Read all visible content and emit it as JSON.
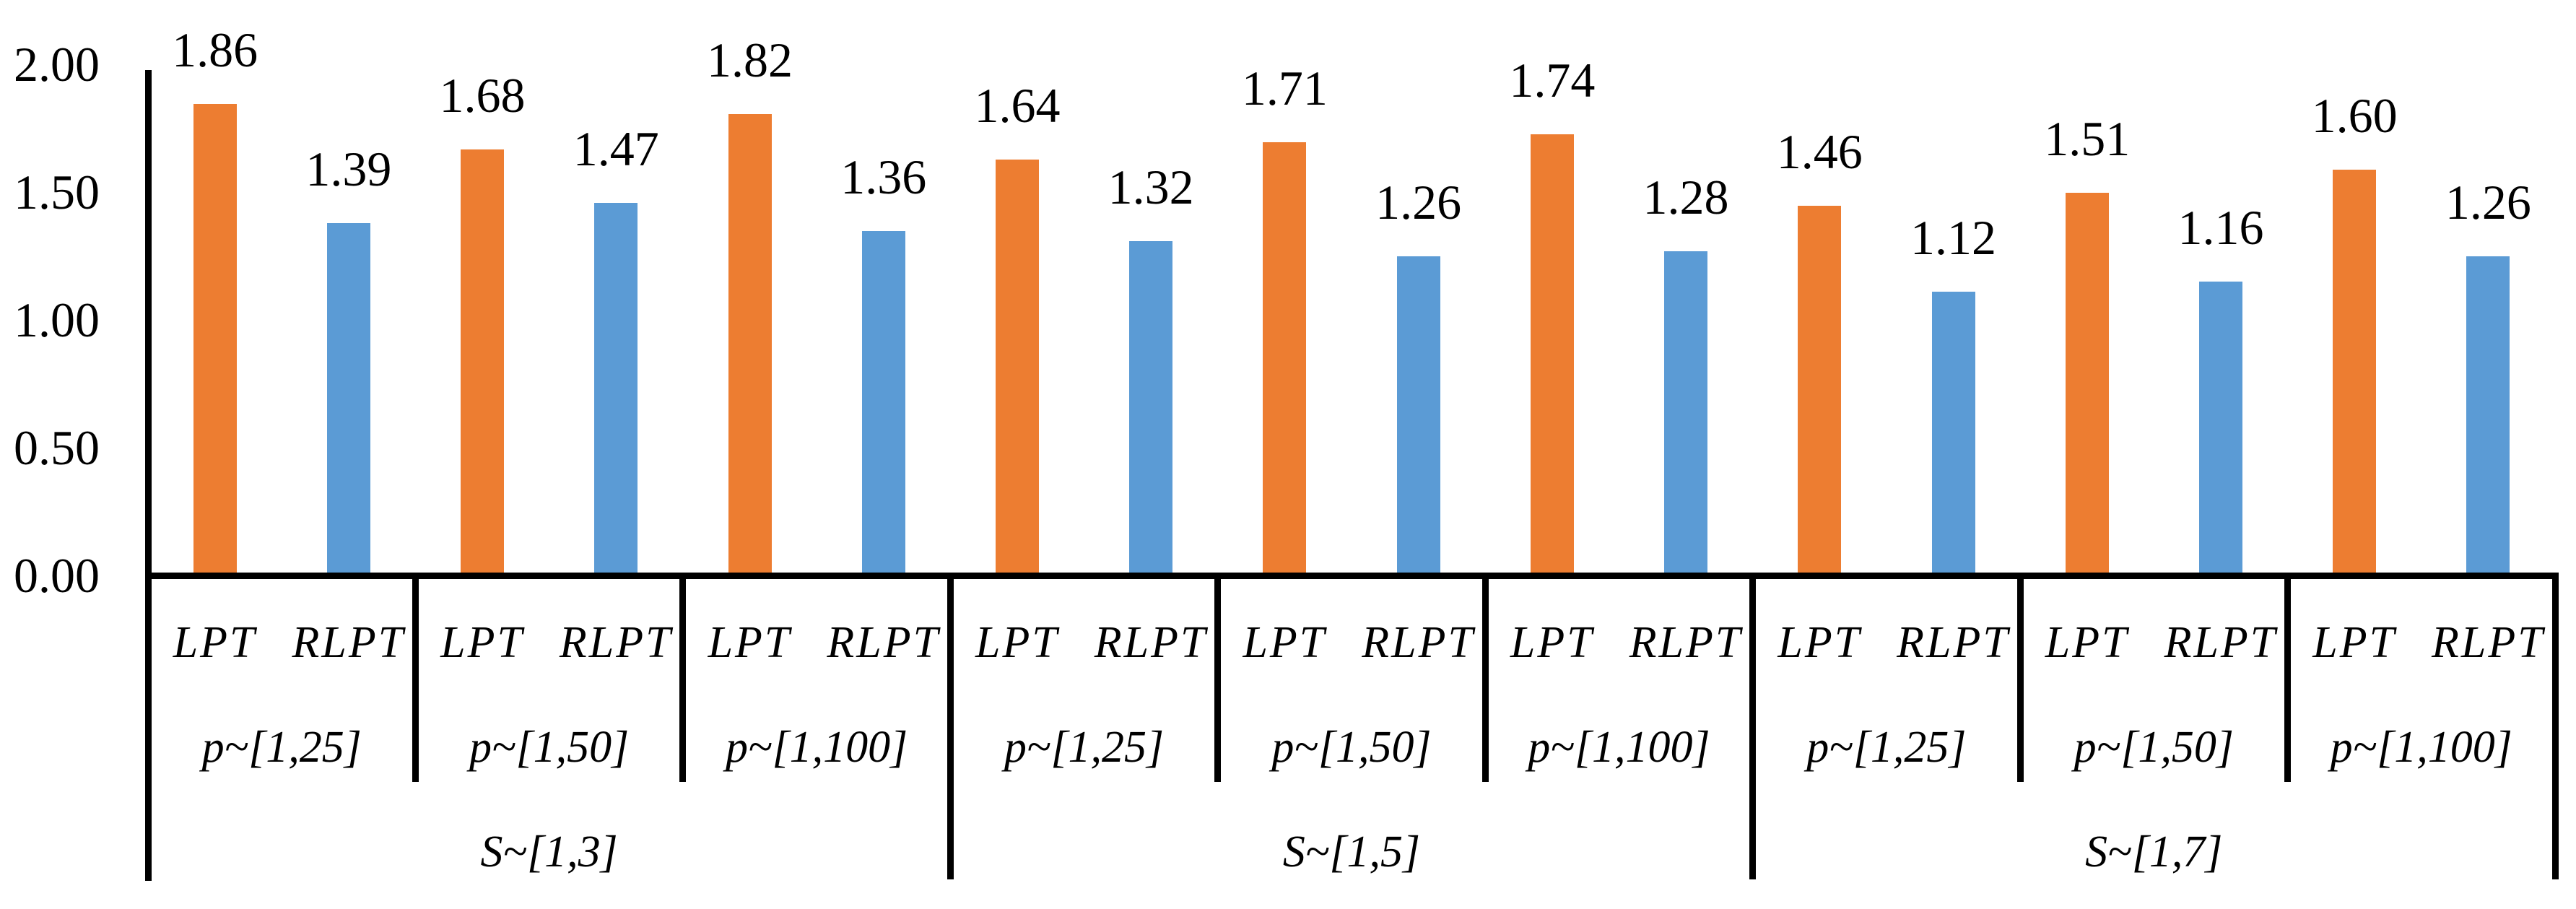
{
  "chart_data": {
    "type": "bar",
    "title": "",
    "series": [
      {
        "name": "LPT",
        "color": "#ED7D31"
      },
      {
        "name": "RLPT",
        "color": "#5B9BD5"
      }
    ],
    "y_axis": {
      "min": 0,
      "max": 2,
      "tick_labels_top_to_bottom": [
        "2.00",
        "1.50",
        "1.00",
        "0.50",
        "0.00"
      ]
    },
    "grid": false,
    "legend_position": "none",
    "s_groups": [
      {
        "label": "S~[1,3]",
        "p_groups": [
          {
            "label": "p~[1,25]",
            "values": [
              "1.86",
              "1.39"
            ]
          },
          {
            "label": "p~[1,50]",
            "values": [
              "1.68",
              "1.47"
            ]
          },
          {
            "label": "p~[1,100]",
            "values": [
              "1.82",
              "1.36"
            ]
          }
        ]
      },
      {
        "label": "S~[1,5]",
        "p_groups": [
          {
            "label": "p~[1,25]",
            "values": [
              "1.64",
              "1.32"
            ]
          },
          {
            "label": "p~[1,50]",
            "values": [
              "1.71",
              "1.26"
            ]
          },
          {
            "label": "p~[1,100]",
            "values": [
              "1.74",
              "1.28"
            ]
          }
        ]
      },
      {
        "label": "S~[1,7]",
        "p_groups": [
          {
            "label": "p~[1,25]",
            "values": [
              "1.46",
              "1.12"
            ]
          },
          {
            "label": "p~[1,50]",
            "values": [
              "1.51",
              "1.16"
            ]
          },
          {
            "label": "p~[1,100]",
            "values": [
              "1.60",
              "1.26"
            ]
          }
        ]
      }
    ]
  },
  "colors": {
    "lpt_bar": "#ED7D31",
    "rlpt_bar": "#5B9BD5",
    "axis_line": "#000000",
    "text": "#000000",
    "background": "#FFFFFF"
  }
}
